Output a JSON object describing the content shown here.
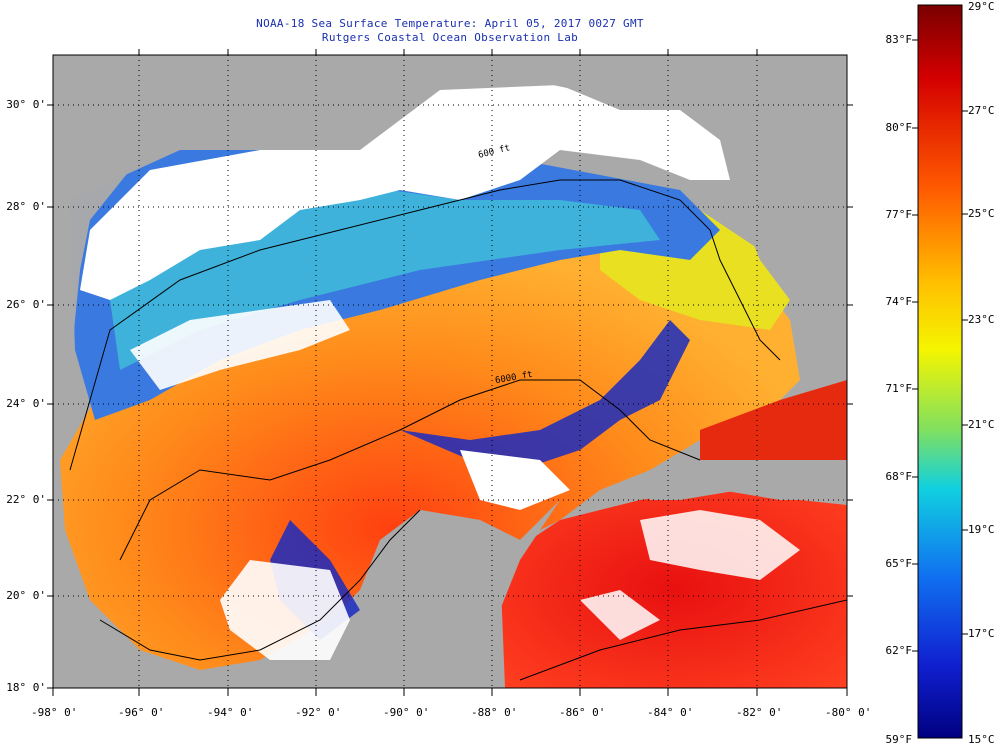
{
  "title": {
    "line1": "NOAA-18 Sea Surface Temperature:  April 05, 2017 0027 GMT",
    "line2": "Rutgers Coastal Ocean Observation Lab"
  },
  "map": {
    "lat_labels": [
      "30° 0'",
      "28° 0'",
      "26° 0'",
      "24° 0'",
      "22° 0'",
      "20° 0'",
      "18° 0'"
    ],
    "lon_labels": [
      "-98° 0'",
      "-96° 0'",
      "-94° 0'",
      "-92° 0'",
      "-90° 0'",
      "-88° 0'",
      "-86° 0'",
      "-84° 0'",
      "-82° 0'",
      "-80° 0'"
    ],
    "contour_labels": [
      "600 ft",
      "6000 ft"
    ],
    "colors": {
      "land": "#a9a9a9",
      "cloud": "#ffffff",
      "warm": "#f03c14",
      "cool": "#1f3fd0",
      "grid": "#000000"
    }
  },
  "colorbar": {
    "celsius": [
      "29°C",
      "27°C",
      "25°C",
      "23°C",
      "21°C",
      "19°C",
      "17°C",
      "15°C"
    ],
    "fahrenheit": [
      "83°F",
      "80°F",
      "77°F",
      "74°F",
      "71°F",
      "68°F",
      "65°F",
      "62°F",
      "59°F"
    ],
    "range_c": [
      15,
      29
    ]
  }
}
